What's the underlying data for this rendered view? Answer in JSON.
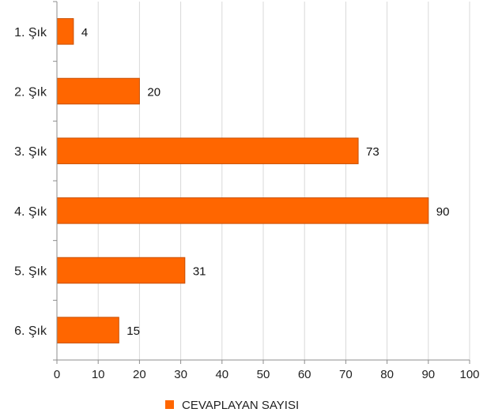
{
  "chart_data": {
    "type": "bar",
    "orientation": "horizontal",
    "categories": [
      "1. Şık",
      "2. Şık",
      "3. Şık",
      "4. Şık",
      "5. Şık",
      "6. Şık"
    ],
    "series": [
      {
        "name": "CEVAPLAYAN SAYISI",
        "values": [
          4,
          20,
          73,
          90,
          31,
          15
        ],
        "color": "#ff6600"
      }
    ],
    "xlim": [
      0,
      100
    ],
    "x_ticks": [
      0,
      10,
      20,
      30,
      40,
      50,
      60,
      70,
      80,
      90,
      100
    ],
    "grid": true,
    "legend_position": "bottom",
    "data_labels": true,
    "title": "",
    "xlabel": "",
    "ylabel": ""
  },
  "colors": {
    "bar": "#ff6600",
    "bar_edge": "#c84f00",
    "grid": "#d9d9d9",
    "axis": "#8c8c8c"
  }
}
